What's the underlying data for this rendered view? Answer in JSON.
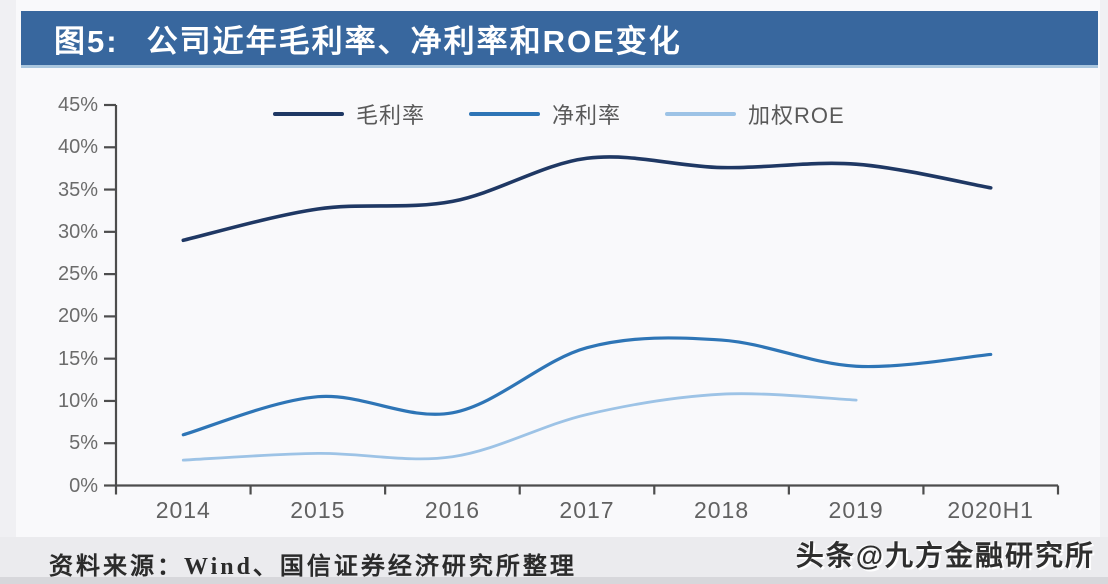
{
  "header": {
    "figure_label": "图5:",
    "title": "公司近年毛利率、净利率和ROE变化",
    "bar_color": "#38679e"
  },
  "footer": {
    "source": "资料来源：Wind、国信证券经济研究所整理",
    "watermark": "头条@九方金融研究所"
  },
  "colors": {
    "axis": "#4d4d4d",
    "tick_text": "#6b6b6b"
  },
  "chart_data": {
    "type": "line",
    "title": "图5: 公司近年毛利率、净利率和ROE变化",
    "categories": [
      "2014",
      "2015",
      "2016",
      "2017",
      "2018",
      "2019",
      "2020H1"
    ],
    "series": [
      {
        "key": "gross-margin",
        "name": "毛利率",
        "color": "#1f3864",
        "width": 3.6,
        "values": [
          29.0,
          32.7,
          33.6,
          38.7,
          37.6,
          38.0,
          35.2
        ]
      },
      {
        "key": "net-margin",
        "name": "净利率",
        "color": "#2e75b6",
        "width": 3.2,
        "values": [
          6.0,
          10.5,
          8.6,
          16.3,
          17.2,
          14.1,
          15.5
        ]
      },
      {
        "key": "weighted-roe",
        "name": "加权ROE",
        "color": "#9dc3e6",
        "width": 2.8,
        "values": [
          3.0,
          3.8,
          3.4,
          8.4,
          10.8,
          10.1,
          null
        ]
      }
    ],
    "ylim": [
      0,
      45
    ],
    "ytick_step": 5,
    "ytick_labels": [
      "45%",
      "40%",
      "35%",
      "30%",
      "25%",
      "20%",
      "15%",
      "10%",
      "5%",
      "0%"
    ],
    "legend_position": "top",
    "grid": false
  }
}
